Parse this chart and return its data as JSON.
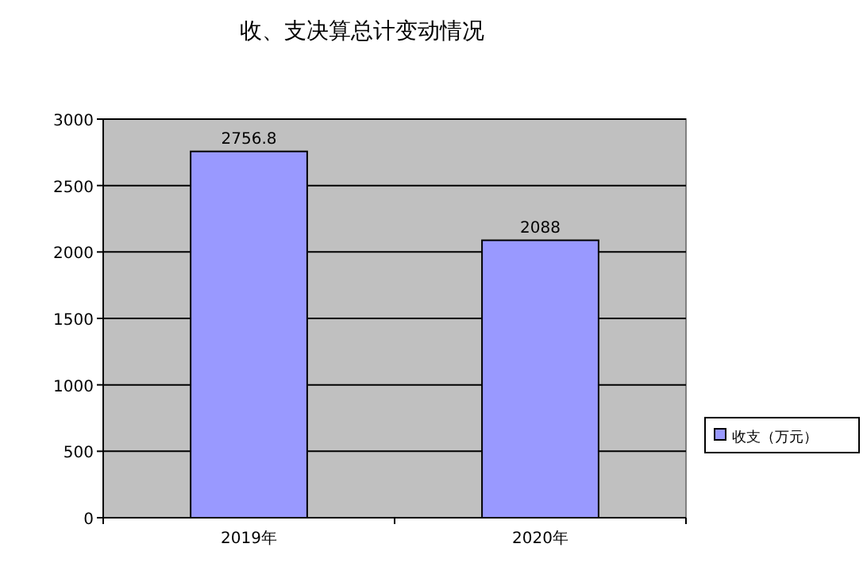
{
  "chart_data": {
    "type": "bar",
    "title": "收、支决算总计变动情况",
    "categories": [
      "2019年",
      "2020年"
    ],
    "series": [
      {
        "name": "收支（万元）",
        "color": "#9999ff",
        "values": [
          2756.8,
          2088
        ]
      }
    ],
    "ylim": [
      0,
      3000
    ],
    "yticks": [
      0,
      500,
      1000,
      1500,
      2000,
      2500,
      3000
    ],
    "grid": "y",
    "legend": "right",
    "data_labels": true
  }
}
